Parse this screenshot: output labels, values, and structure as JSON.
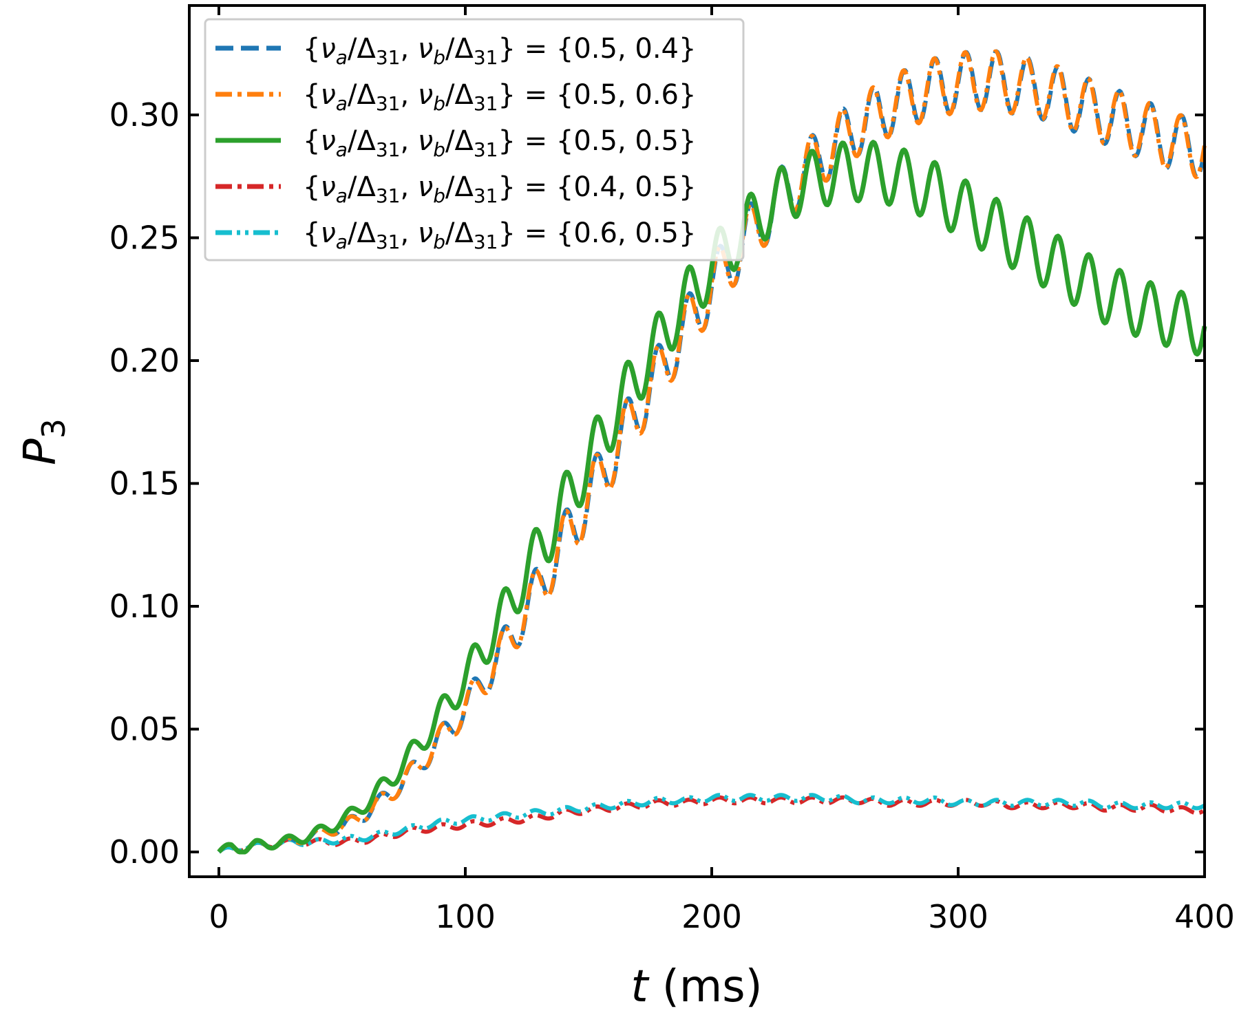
{
  "chart_data": {
    "type": "line",
    "xlabel": {
      "var": "t",
      "unit": "(ms)"
    },
    "ylabel": {
      "var": "P",
      "sub": "3"
    },
    "xlim": [
      0,
      400
    ],
    "ylim": [
      0.0,
      0.33
    ],
    "xticks": [
      0,
      100,
      200,
      300,
      400
    ],
    "xtick_labels": [
      "0",
      "100",
      "200",
      "300",
      "400"
    ],
    "yticks": [
      0.0,
      0.05,
      0.1,
      0.15,
      0.2,
      0.25,
      0.3
    ],
    "ytick_labels": [
      "0.00",
      "0.05",
      "0.10",
      "0.15",
      "0.20",
      "0.25",
      "0.30"
    ],
    "grid": false,
    "legend_position": "upper-left",
    "legend_eq": "=",
    "series": [
      {
        "name": "{νa/Δ31, νb/Δ31} = {0.5, 0.4}",
        "pair": "{0.5, 0.4}",
        "color": "#1f77b4",
        "style": "dashed",
        "x": [
          0,
          5,
          10,
          15,
          20,
          25,
          30,
          35,
          40,
          45,
          50,
          55,
          60,
          65,
          70,
          75,
          80,
          85,
          90,
          95,
          100,
          105,
          110,
          115,
          120,
          125,
          130,
          135,
          140,
          145,
          150,
          155,
          160,
          165,
          170,
          175,
          180,
          185,
          190,
          195,
          200,
          205,
          210,
          215,
          220,
          225,
          230,
          235,
          240,
          245,
          250,
          255,
          260,
          265,
          270,
          275,
          280,
          285,
          290,
          295,
          300,
          305,
          310,
          315,
          320,
          325,
          330,
          335,
          340,
          345,
          350,
          355,
          360,
          365,
          370,
          375,
          380,
          385,
          390,
          395,
          400
        ],
        "values": [
          0.0,
          0.002,
          0.001,
          0.003,
          0.003,
          0.004,
          0.004,
          0.006,
          0.007,
          0.009,
          0.01,
          0.013,
          0.016,
          0.02,
          0.024,
          0.029,
          0.034,
          0.04,
          0.046,
          0.052,
          0.059,
          0.066,
          0.074,
          0.082,
          0.09,
          0.099,
          0.108,
          0.117,
          0.126,
          0.135,
          0.144,
          0.153,
          0.162,
          0.171,
          0.18,
          0.189,
          0.197,
          0.206,
          0.214,
          0.222,
          0.23,
          0.237,
          0.244,
          0.251,
          0.257,
          0.263,
          0.269,
          0.274,
          0.279,
          0.284,
          0.288,
          0.292,
          0.296,
          0.299,
          0.302,
          0.305,
          0.307,
          0.309,
          0.311,
          0.312,
          0.313,
          0.314,
          0.314,
          0.314,
          0.313,
          0.312,
          0.311,
          0.31,
          0.308,
          0.306,
          0.304,
          0.302,
          0.3,
          0.298,
          0.296,
          0.294,
          0.292,
          0.29,
          0.288,
          0.287,
          0.286
        ]
      },
      {
        "name": "{νa/Δ31, νb/Δ31} = {0.5, 0.6}",
        "pair": "{0.5, 0.6}",
        "color": "#ff7f0e",
        "style": "dashdot",
        "x": [
          0,
          5,
          10,
          15,
          20,
          25,
          30,
          35,
          40,
          45,
          50,
          55,
          60,
          65,
          70,
          75,
          80,
          85,
          90,
          95,
          100,
          105,
          110,
          115,
          120,
          125,
          130,
          135,
          140,
          145,
          150,
          155,
          160,
          165,
          170,
          175,
          180,
          185,
          190,
          195,
          200,
          205,
          210,
          215,
          220,
          225,
          230,
          235,
          240,
          245,
          250,
          255,
          260,
          265,
          270,
          275,
          280,
          285,
          290,
          295,
          300,
          305,
          310,
          315,
          320,
          325,
          330,
          335,
          340,
          345,
          350,
          355,
          360,
          365,
          370,
          375,
          380,
          385,
          390,
          395,
          400
        ],
        "values": [
          0.0,
          0.002,
          0.001,
          0.003,
          0.003,
          0.004,
          0.004,
          0.006,
          0.007,
          0.009,
          0.01,
          0.013,
          0.016,
          0.02,
          0.024,
          0.029,
          0.034,
          0.04,
          0.046,
          0.052,
          0.059,
          0.066,
          0.074,
          0.082,
          0.09,
          0.099,
          0.108,
          0.117,
          0.126,
          0.135,
          0.144,
          0.153,
          0.162,
          0.171,
          0.18,
          0.189,
          0.197,
          0.206,
          0.214,
          0.222,
          0.23,
          0.237,
          0.244,
          0.251,
          0.257,
          0.263,
          0.269,
          0.274,
          0.279,
          0.284,
          0.288,
          0.292,
          0.296,
          0.299,
          0.302,
          0.305,
          0.307,
          0.309,
          0.311,
          0.312,
          0.313,
          0.314,
          0.314,
          0.314,
          0.313,
          0.312,
          0.311,
          0.31,
          0.308,
          0.306,
          0.304,
          0.302,
          0.3,
          0.298,
          0.296,
          0.294,
          0.292,
          0.29,
          0.288,
          0.287,
          0.286
        ]
      },
      {
        "name": "{νa/Δ31, νb/Δ31} = {0.5, 0.5}",
        "pair": "{0.5, 0.5}",
        "color": "#2ca02c",
        "style": "solid",
        "x": [
          0,
          5,
          10,
          15,
          20,
          25,
          30,
          35,
          40,
          45,
          50,
          55,
          60,
          65,
          70,
          75,
          80,
          85,
          90,
          95,
          100,
          105,
          110,
          115,
          120,
          125,
          130,
          135,
          140,
          145,
          150,
          155,
          160,
          165,
          170,
          175,
          180,
          185,
          190,
          195,
          200,
          205,
          210,
          215,
          220,
          225,
          230,
          235,
          240,
          245,
          250,
          255,
          260,
          265,
          270,
          275,
          280,
          285,
          290,
          295,
          300,
          305,
          310,
          315,
          320,
          325,
          330,
          335,
          340,
          345,
          350,
          355,
          360,
          365,
          370,
          375,
          380,
          385,
          390,
          395,
          400
        ],
        "values": [
          0.0,
          0.002,
          0.001,
          0.003,
          0.003,
          0.004,
          0.005,
          0.006,
          0.008,
          0.01,
          0.013,
          0.016,
          0.02,
          0.025,
          0.03,
          0.036,
          0.042,
          0.049,
          0.056,
          0.063,
          0.071,
          0.079,
          0.087,
          0.096,
          0.105,
          0.114,
          0.123,
          0.132,
          0.141,
          0.15,
          0.159,
          0.168,
          0.177,
          0.186,
          0.194,
          0.202,
          0.21,
          0.218,
          0.225,
          0.232,
          0.238,
          0.244,
          0.25,
          0.255,
          0.26,
          0.264,
          0.268,
          0.271,
          0.273,
          0.275,
          0.276,
          0.277,
          0.277,
          0.277,
          0.276,
          0.275,
          0.273,
          0.271,
          0.269,
          0.266,
          0.263,
          0.26,
          0.257,
          0.254,
          0.251,
          0.248,
          0.245,
          0.242,
          0.239,
          0.236,
          0.233,
          0.23,
          0.227,
          0.225,
          0.223,
          0.221,
          0.219,
          0.218,
          0.216,
          0.215,
          0.214
        ]
      },
      {
        "name": "{νa/Δ31, νb/Δ31} = {0.4, 0.5}",
        "pair": "{0.4, 0.5}",
        "color": "#d62728",
        "style": "dashdot",
        "x": [
          0,
          10,
          20,
          30,
          40,
          50,
          60,
          70,
          80,
          90,
          100,
          110,
          120,
          130,
          140,
          150,
          160,
          170,
          180,
          190,
          200,
          210,
          220,
          230,
          240,
          250,
          260,
          270,
          280,
          290,
          300,
          310,
          320,
          330,
          340,
          350,
          360,
          370,
          380,
          390,
          400
        ],
        "values": [
          0.0,
          0.002,
          0.003,
          0.004,
          0.004,
          0.004,
          0.005,
          0.007,
          0.009,
          0.01,
          0.011,
          0.012,
          0.013,
          0.014,
          0.016,
          0.017,
          0.018,
          0.019,
          0.02,
          0.02,
          0.021,
          0.021,
          0.021,
          0.021,
          0.021,
          0.021,
          0.021,
          0.02,
          0.02,
          0.02,
          0.02,
          0.02,
          0.019,
          0.019,
          0.019,
          0.019,
          0.018,
          0.018,
          0.018,
          0.017,
          0.017
        ]
      },
      {
        "name": "{νa/Δ31, νb/Δ31} = {0.6, 0.5}",
        "pair": "{0.6, 0.5}",
        "color": "#17becf",
        "style": "dashdotdot",
        "x": [
          0,
          10,
          20,
          30,
          40,
          50,
          60,
          70,
          80,
          90,
          100,
          110,
          120,
          130,
          140,
          150,
          160,
          170,
          180,
          190,
          200,
          210,
          220,
          230,
          240,
          250,
          260,
          270,
          280,
          290,
          300,
          310,
          320,
          330,
          340,
          350,
          360,
          370,
          380,
          390,
          400
        ],
        "values": [
          0.0,
          0.002,
          0.003,
          0.004,
          0.004,
          0.005,
          0.006,
          0.008,
          0.01,
          0.012,
          0.013,
          0.014,
          0.015,
          0.016,
          0.017,
          0.018,
          0.019,
          0.02,
          0.021,
          0.021,
          0.022,
          0.022,
          0.022,
          0.022,
          0.022,
          0.022,
          0.021,
          0.021,
          0.021,
          0.021,
          0.02,
          0.02,
          0.02,
          0.02,
          0.02,
          0.02,
          0.019,
          0.019,
          0.019,
          0.019,
          0.019
        ]
      }
    ],
    "oscillation_period_ms": 12.5
  }
}
